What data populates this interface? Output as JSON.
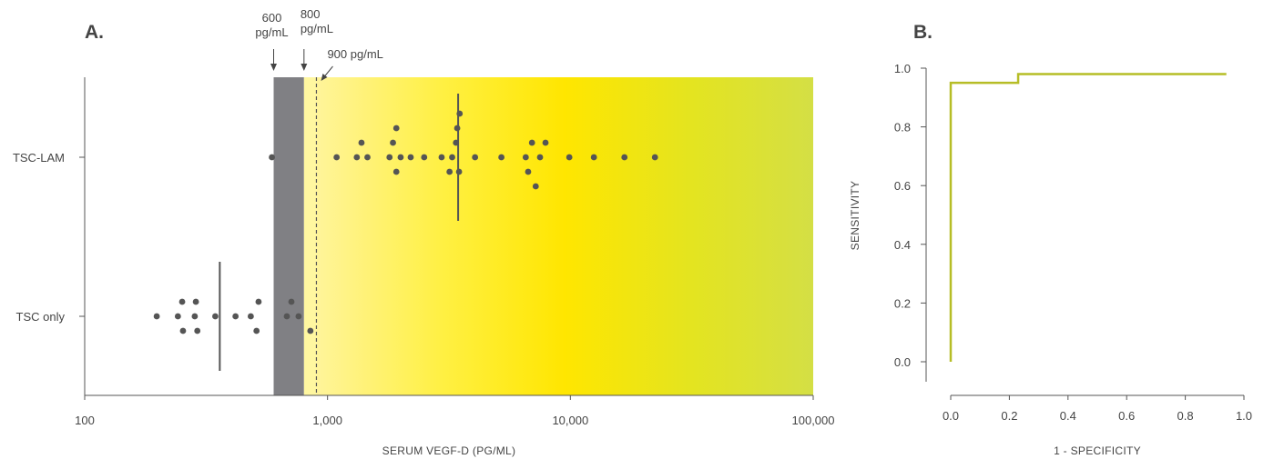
{
  "colors": {
    "ink": "#444444",
    "dot": "#555555",
    "gray_band": "#808084",
    "pale_band": "#fff7a0",
    "gradient_stops": [
      "#fff49a",
      "#fff044",
      "#ffe600",
      "#e4e41f",
      "#d4df45"
    ],
    "roc_line": "#b6bd26"
  },
  "chart_data": [
    {
      "panel": "A.",
      "type": "scatter",
      "xlabel": "SERUM VEGF-D (PG/ML)",
      "xscale": "log",
      "xlim": [
        100,
        100000
      ],
      "xticks": [
        100,
        1000,
        10000,
        100000
      ],
      "xtick_labels": [
        "100",
        "1,000",
        "10,000",
        "100,000"
      ],
      "groups": [
        "TSC-LAM",
        "TSC only"
      ],
      "thresholds": [
        {
          "value": 600,
          "label": [
            "600",
            "pg/mL"
          ]
        },
        {
          "value": 800,
          "label": [
            "800",
            "pg/mL"
          ]
        },
        {
          "value": 900,
          "label": [
            "900 pg/mL"
          ]
        }
      ],
      "bands": [
        {
          "from": 600,
          "to": 800,
          "kind": "gray"
        },
        {
          "from": 800,
          "to": 900,
          "kind": "pale"
        },
        {
          "from": 900,
          "to": 100000,
          "kind": "gradient"
        }
      ],
      "series": [
        {
          "group": "TSC-LAM",
          "points": [
            {
              "x": 590,
              "o": 0
            },
            {
              "x": 1090,
              "o": 0
            },
            {
              "x": 1320,
              "o": 0
            },
            {
              "x": 1380,
              "o": 1
            },
            {
              "x": 1460,
              "o": 0
            },
            {
              "x": 1800,
              "o": 0
            },
            {
              "x": 1860,
              "o": 1
            },
            {
              "x": 1920,
              "o": -1
            },
            {
              "x": 1920,
              "o": 2
            },
            {
              "x": 2000,
              "o": 0
            },
            {
              "x": 2200,
              "o": 0
            },
            {
              "x": 2500,
              "o": 0
            },
            {
              "x": 2950,
              "o": 0
            },
            {
              "x": 3180,
              "o": -1
            },
            {
              "x": 3260,
              "o": 0
            },
            {
              "x": 3380,
              "o": 1
            },
            {
              "x": 3420,
              "o": 2
            },
            {
              "x": 3480,
              "o": -1
            },
            {
              "x": 3500,
              "o": 3
            },
            {
              "x": 4050,
              "o": 0
            },
            {
              "x": 5200,
              "o": 0
            },
            {
              "x": 6550,
              "o": 0
            },
            {
              "x": 6700,
              "o": -1
            },
            {
              "x": 6950,
              "o": 1
            },
            {
              "x": 7200,
              "o": -2
            },
            {
              "x": 7500,
              "o": 0
            },
            {
              "x": 7900,
              "o": 1
            },
            {
              "x": 9900,
              "o": 0
            },
            {
              "x": 12500,
              "o": 0
            },
            {
              "x": 16700,
              "o": 0
            },
            {
              "x": 22300,
              "o": 0
            }
          ],
          "median": 3450,
          "range_halfheight": 70
        },
        {
          "group": "TSC only",
          "points": [
            {
              "x": 198,
              "o": 0
            },
            {
              "x": 242,
              "o": 0
            },
            {
              "x": 252,
              "o": 1
            },
            {
              "x": 254,
              "o": -1
            },
            {
              "x": 284,
              "o": 0
            },
            {
              "x": 287,
              "o": 1
            },
            {
              "x": 291,
              "o": -1
            },
            {
              "x": 345,
              "o": 0
            },
            {
              "x": 418,
              "o": 0
            },
            {
              "x": 483,
              "o": 0
            },
            {
              "x": 510,
              "o": -1
            },
            {
              "x": 520,
              "o": 1
            },
            {
              "x": 680,
              "o": 0
            },
            {
              "x": 710,
              "o": 1
            },
            {
              "x": 760,
              "o": 0
            },
            {
              "x": 850,
              "o": -1
            }
          ],
          "median": 360,
          "range_halfheight": 60
        }
      ]
    },
    {
      "panel": "B.",
      "type": "line",
      "xlabel": "1 - SPECIFICITY",
      "ylabel": "SENSITIVITY",
      "xlim": [
        0,
        1
      ],
      "ylim": [
        0,
        1
      ],
      "xticks": [
        "0.0",
        "0.2",
        "0.4",
        "0.6",
        "0.8",
        "1.0"
      ],
      "yticks": [
        "0.0",
        "0.2",
        "0.4",
        "0.6",
        "0.8",
        "1.0"
      ],
      "x": [
        0,
        0,
        0.23,
        0.23,
        0.94
      ],
      "y": [
        0,
        0.95,
        0.95,
        0.98,
        0.98
      ]
    }
  ]
}
